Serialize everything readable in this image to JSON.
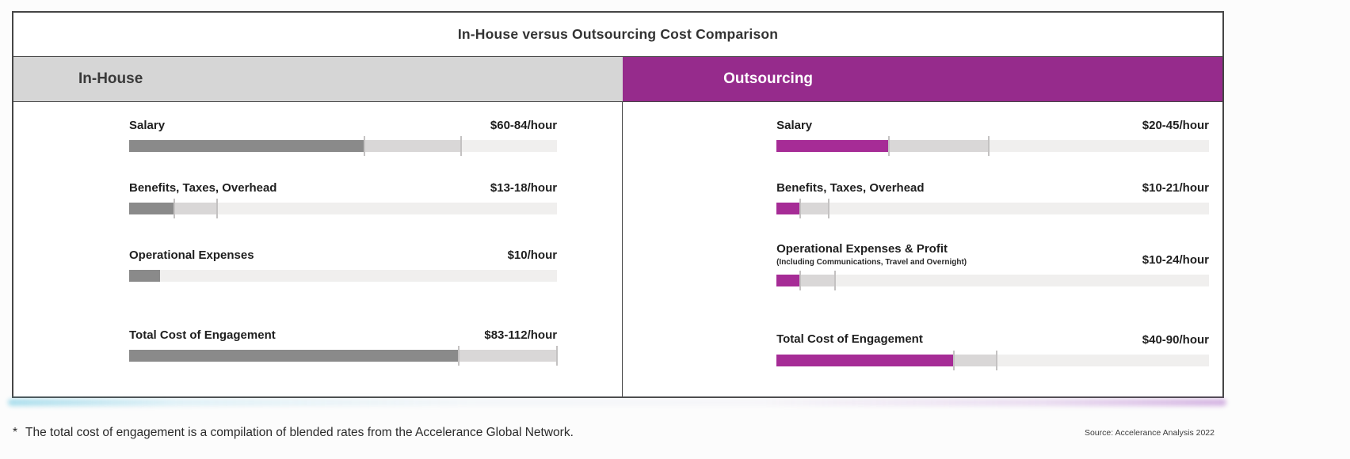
{
  "title": "In-House versus Outsourcing Cost Comparison",
  "footnote_mark": "*",
  "footnote": "The total cost of engagement is a compilation of blended rates from the Accelerance Global Network.",
  "source": "Source: Accelerance Analysis 2022",
  "colors": {
    "inhouse_header_bg": "#d6d6d6",
    "outsourcing_header_bg": "#962b8c",
    "inhouse_bar": "#8a8a8a",
    "outsourcing_bar": "#a62c96",
    "range_segment": "#d9d7d7",
    "track": "#f0efee",
    "tick": "#c4c2c2"
  },
  "columns": [
    {
      "id": "inhouse",
      "header": "In-House",
      "rows": [
        {
          "label": "Salary",
          "value": "$60-84/hour",
          "bar": {
            "fill_pct": 55,
            "range_pct": 22.5,
            "ticks": [
              55,
              77.5
            ]
          }
        },
        {
          "label": "Benefits, Taxes, Overhead",
          "value": "$13-18/hour",
          "bar": {
            "fill_pct": 10.6,
            "range_pct": 9.9,
            "ticks": [
              10.6,
              20.5
            ]
          }
        },
        {
          "label": "Operational Expenses",
          "value": "$10/hour",
          "bar": {
            "fill_pct": 7.2,
            "range_pct": 0,
            "ticks": []
          }
        },
        {
          "label": "Total Cost of Engagement",
          "value": "$83-112/hour",
          "bar": {
            "fill_pct": 77,
            "range_pct": 23,
            "ticks": [
              77,
              100
            ]
          }
        }
      ]
    },
    {
      "id": "outsourcing",
      "header": "Outsourcing",
      "rows": [
        {
          "label": "Salary",
          "value": "$20-45/hour",
          "bar": {
            "fill_pct": 26,
            "range_pct": 23,
            "ticks": [
              26,
              49
            ]
          }
        },
        {
          "label": "Benefits, Taxes, Overhead",
          "value": "$10-21/hour",
          "bar": {
            "fill_pct": 5.5,
            "range_pct": 6.5,
            "ticks": [
              5.5,
              12
            ]
          }
        },
        {
          "label": "Operational Expenses & Profit",
          "sublabel": "(Including Communications, Travel and Overnight)",
          "value": "$10-24/hour",
          "bar": {
            "fill_pct": 5.5,
            "range_pct": 8,
            "ticks": [
              5.5,
              13.5
            ]
          }
        },
        {
          "label": "Total Cost of Engagement",
          "value": "$40-90/hour",
          "bar": {
            "fill_pct": 41,
            "range_pct": 10,
            "ticks": [
              41,
              51
            ]
          }
        }
      ]
    }
  ],
  "chart_data": {
    "type": "bar",
    "title": "In-House versus Outsourcing Cost Comparison",
    "unit": "$/hour",
    "layout": {
      "orientation": "horizontal",
      "two_panel_comparison": true,
      "legend": "none",
      "value_scale_max": 112
    },
    "groups": [
      {
        "name": "In-House",
        "categories": [
          "Salary",
          "Benefits, Taxes, Overhead",
          "Operational Expenses",
          "Total Cost of Engagement"
        ],
        "ranges": [
          [
            60,
            84
          ],
          [
            13,
            18
          ],
          [
            10,
            10
          ],
          [
            83,
            112
          ]
        ],
        "value_labels": [
          "$60-84/hour",
          "$13-18/hour",
          "$10/hour",
          "$83-112/hour"
        ]
      },
      {
        "name": "Outsourcing",
        "categories": [
          "Salary",
          "Benefits, Taxes, Overhead",
          "Operational Expenses & Profit (Including Communications, Travel and Overnight)",
          "Total Cost of Engagement"
        ],
        "ranges": [
          [
            20,
            45
          ],
          [
            10,
            21
          ],
          [
            10,
            24
          ],
          [
            40,
            90
          ]
        ],
        "value_labels": [
          "$20-45/hour",
          "$10-21/hour",
          "$10-24/hour",
          "$40-90/hour"
        ]
      }
    ],
    "annotations": [
      "* The total cost of engagement is a compilation of blended rates from the Accelerance Global Network.",
      "Source: Accelerance Analysis 2022"
    ]
  }
}
